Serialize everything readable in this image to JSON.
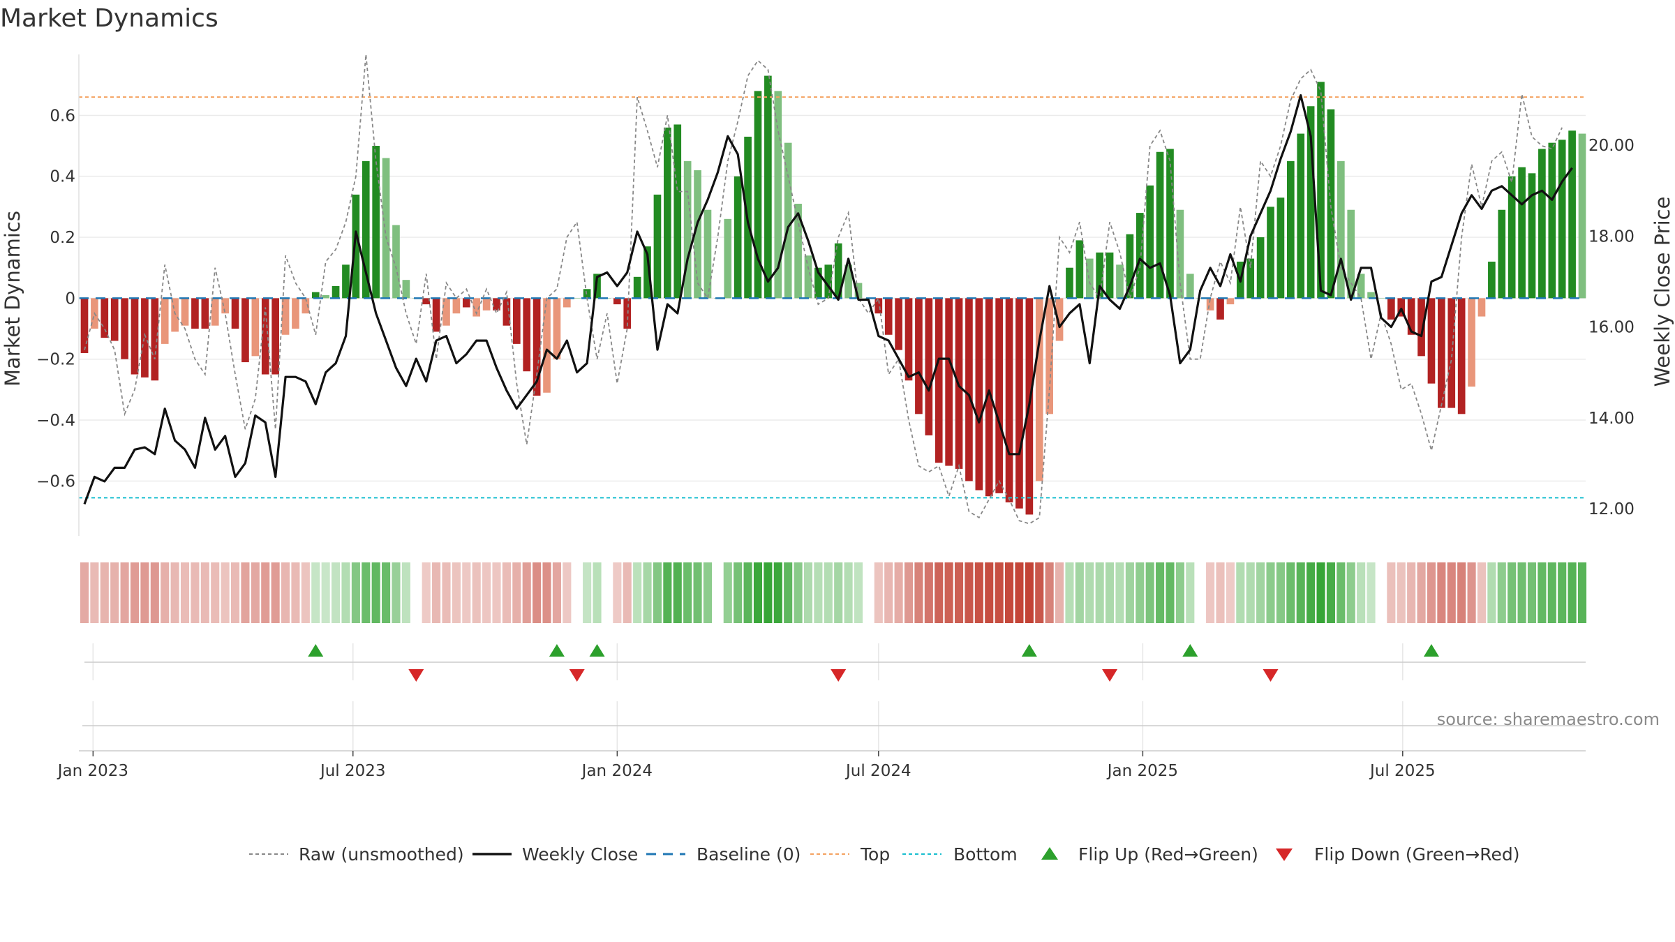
{
  "title": "Market Dynamics",
  "source": "source: sharemaestro.com",
  "colors": {
    "strong_green": "#228b22",
    "light_green": "#7fbf7f",
    "strong_red": "#b22222",
    "light_red": "#e9967a",
    "raw_line": "#888888",
    "close_line": "#111111",
    "baseline": "#1f77b4",
    "top": "#f4a261",
    "bottom": "#17becf",
    "flip_up": "#2ca02c",
    "flip_down": "#d62728"
  },
  "chart_data": {
    "type": "bar",
    "x_type": "weekly dates",
    "x_ticks": [
      "Jan 2023",
      "Jul 2023",
      "Jan 2024",
      "Jul 2024",
      "Jan 2025",
      "Jul 2025"
    ],
    "x_tick_dates": [
      "2023-01-01",
      "2023-07-01",
      "2024-01-01",
      "2024-07-01",
      "2025-01-01",
      "2025-07-01"
    ],
    "start_date": "2022-12-26",
    "ylabel_left": "Market Dynamics",
    "ylabel_right": "Weekly Close Price",
    "ylim_left": [
      -0.78,
      0.8
    ],
    "ylim_right": [
      11.4,
      22.0
    ],
    "y_ticks_left": [
      "0.6",
      "0.4",
      "0.2",
      "0",
      "−0.2",
      "−0.4",
      "−0.6"
    ],
    "y_tick_values_left": [
      0.6,
      0.4,
      0.2,
      0,
      -0.2,
      -0.4,
      -0.6
    ],
    "y_ticks_right": [
      "20.00",
      "18.00",
      "16.00",
      "14.00",
      "12.00"
    ],
    "y_tick_values_right": [
      20,
      18,
      16,
      14,
      12
    ],
    "top_level": 0.66,
    "bottom_level": -0.655,
    "baseline": 0,
    "series": [
      {
        "name": "Market Dynamics",
        "kind": "bars",
        "values": [
          -0.18,
          -0.1,
          -0.13,
          -0.14,
          -0.2,
          -0.25,
          -0.26,
          -0.27,
          -0.15,
          -0.11,
          -0.09,
          -0.1,
          -0.1,
          -0.09,
          -0.05,
          -0.1,
          -0.21,
          -0.19,
          -0.25,
          -0.25,
          -0.12,
          -0.1,
          -0.05,
          0.02,
          0.01,
          0.04,
          0.11,
          0.34,
          0.45,
          0.5,
          0.46,
          0.24,
          0.06,
          0.0,
          -0.02,
          -0.11,
          -0.09,
          -0.05,
          -0.03,
          -0.06,
          -0.04,
          -0.04,
          -0.09,
          -0.15,
          -0.24,
          -0.32,
          -0.31,
          -0.2,
          -0.03,
          0.0,
          0.03,
          0.08,
          0.0,
          -0.02,
          -0.1,
          0.07,
          0.17,
          0.34,
          0.56,
          0.57,
          0.45,
          0.42,
          0.29,
          0.0,
          0.26,
          0.4,
          0.53,
          0.68,
          0.73,
          0.68,
          0.51,
          0.31,
          0.14,
          0.1,
          0.11,
          0.18,
          0.11,
          0.05,
          0.0,
          -0.05,
          -0.12,
          -0.17,
          -0.27,
          -0.38,
          -0.45,
          -0.54,
          -0.55,
          -0.56,
          -0.6,
          -0.63,
          -0.65,
          -0.64,
          -0.67,
          -0.69,
          -0.71,
          -0.6,
          -0.38,
          -0.14,
          0.1,
          0.19,
          0.13,
          0.15,
          0.15,
          0.11,
          0.21,
          0.28,
          0.37,
          0.48,
          0.49,
          0.29,
          0.08,
          0.0,
          -0.04,
          -0.07,
          -0.02,
          0.12,
          0.13,
          0.2,
          0.3,
          0.33,
          0.45,
          0.54,
          0.63,
          0.71,
          0.62,
          0.45,
          0.29,
          0.08,
          0.02,
          0.0,
          -0.07,
          -0.06,
          -0.12,
          -0.19,
          -0.28,
          -0.36,
          -0.36,
          -0.38,
          -0.29,
          -0.06,
          0.12,
          0.29,
          0.4,
          0.43,
          0.41,
          0.49,
          0.51,
          0.52,
          0.55,
          0.54
        ],
        "strength": [
          1,
          0,
          1,
          1,
          1,
          1,
          1,
          1,
          0,
          0,
          0,
          1,
          1,
          0,
          0,
          1,
          1,
          0,
          1,
          1,
          0,
          0,
          0,
          1,
          0,
          1,
          1,
          1,
          1,
          1,
          0,
          0,
          0,
          0,
          1,
          1,
          0,
          0,
          1,
          0,
          0,
          1,
          1,
          1,
          1,
          1,
          0,
          0,
          0,
          0,
          1,
          1,
          0,
          1,
          1,
          1,
          1,
          1,
          1,
          1,
          0,
          0,
          0,
          0,
          0,
          1,
          1,
          1,
          1,
          0,
          0,
          0,
          0,
          1,
          1,
          1,
          0,
          0,
          0,
          1,
          1,
          1,
          1,
          1,
          1,
          1,
          1,
          1,
          1,
          1,
          1,
          1,
          1,
          1,
          1,
          0,
          0,
          0,
          1,
          1,
          0,
          1,
          1,
          0,
          1,
          1,
          1,
          1,
          1,
          0,
          0,
          0,
          0,
          1,
          0,
          1,
          1,
          1,
          1,
          1,
          1,
          1,
          1,
          1,
          1,
          0,
          0,
          0,
          0,
          0,
          1,
          1,
          1,
          1,
          1,
          1,
          1,
          1,
          0,
          0,
          1,
          1,
          1,
          1,
          1,
          1,
          1,
          1,
          1,
          0
        ]
      },
      {
        "name": "Raw (unsmoothed)",
        "kind": "line",
        "values": [
          -0.17,
          -0.05,
          -0.1,
          -0.17,
          -0.38,
          -0.3,
          -0.12,
          -0.2,
          0.11,
          -0.05,
          -0.1,
          -0.2,
          -0.25,
          0.1,
          -0.05,
          -0.25,
          -0.43,
          -0.33,
          -0.03,
          -0.43,
          0.14,
          0.05,
          0.0,
          -0.12,
          0.12,
          0.16,
          0.25,
          0.4,
          0.8,
          0.45,
          0.2,
          0.1,
          -0.05,
          -0.15,
          0.08,
          -0.2,
          0.05,
          0.0,
          0.03,
          -0.05,
          0.03,
          -0.05,
          0.02,
          -0.28,
          -0.48,
          -0.25,
          0.0,
          0.03,
          0.2,
          0.25,
          0.0,
          -0.2,
          -0.05,
          -0.28,
          -0.1,
          0.66,
          0.55,
          0.43,
          0.6,
          0.35,
          0.35,
          0.05,
          0.0,
          0.2,
          0.45,
          0.58,
          0.73,
          0.78,
          0.75,
          0.55,
          0.4,
          0.25,
          0.1,
          -0.02,
          0.0,
          0.2,
          0.28,
          0.0,
          -0.05,
          0.0,
          -0.25,
          -0.2,
          -0.4,
          -0.55,
          -0.57,
          -0.55,
          -0.65,
          -0.55,
          -0.7,
          -0.72,
          -0.66,
          -0.6,
          -0.66,
          -0.73,
          -0.74,
          -0.72,
          -0.3,
          0.2,
          0.15,
          0.25,
          0.05,
          0.0,
          0.25,
          0.15,
          0.0,
          0.1,
          0.5,
          0.55,
          0.45,
          0.05,
          -0.2,
          -0.2,
          0.0,
          0.12,
          0.05,
          0.3,
          0.1,
          0.45,
          0.4,
          0.5,
          0.65,
          0.72,
          0.75,
          0.68,
          0.3,
          0.1,
          0.05,
          0.0,
          -0.2,
          -0.05,
          -0.15,
          -0.3,
          -0.28,
          -0.38,
          -0.5,
          -0.35,
          -0.2,
          0.2,
          0.44,
          0.3,
          0.45,
          0.48,
          0.38,
          0.67,
          0.53,
          0.5,
          0.49,
          0.56
        ]
      },
      {
        "name": "Weekly Close",
        "kind": "line",
        "axis": "right",
        "values": [
          12.1,
          12.7,
          12.6,
          12.9,
          12.9,
          13.3,
          13.35,
          13.2,
          14.2,
          13.5,
          13.3,
          12.9,
          14.0,
          13.3,
          13.6,
          12.7,
          13.0,
          14.05,
          13.9,
          12.7,
          14.9,
          14.9,
          14.8,
          14.3,
          15.0,
          15.2,
          15.8,
          18.1,
          17.2,
          16.3,
          15.7,
          15.1,
          14.7,
          15.3,
          14.8,
          15.7,
          15.8,
          15.2,
          15.4,
          15.7,
          15.7,
          15.1,
          14.6,
          14.2,
          14.5,
          14.8,
          15.5,
          15.3,
          15.7,
          15.0,
          15.2,
          17.1,
          17.2,
          16.9,
          17.2,
          18.1,
          17.6,
          15.5,
          16.5,
          16.3,
          17.5,
          18.3,
          18.8,
          19.4,
          20.2,
          19.8,
          18.3,
          17.5,
          17.0,
          17.3,
          18.2,
          18.5,
          17.9,
          17.2,
          16.9,
          16.6,
          17.5,
          16.6,
          16.6,
          15.8,
          15.7,
          15.3,
          14.9,
          15.0,
          14.6,
          15.3,
          15.3,
          14.7,
          14.5,
          13.9,
          14.6,
          13.9,
          13.2,
          13.2,
          14.3,
          15.7,
          16.9,
          16.0,
          16.3,
          16.5,
          15.2,
          16.9,
          16.6,
          16.4,
          16.9,
          17.5,
          17.3,
          17.4,
          16.7,
          15.2,
          15.5,
          16.8,
          17.3,
          16.9,
          17.6,
          17.0,
          18.0,
          18.5,
          19.0,
          19.7,
          20.3,
          21.1,
          20.2,
          16.8,
          16.7,
          17.5,
          16.6,
          17.3,
          17.3,
          16.2,
          16.0,
          16.4,
          15.9,
          15.8,
          17.0,
          17.1,
          17.8,
          18.5,
          18.9,
          18.6,
          19.0,
          19.1,
          18.9,
          18.7,
          18.9,
          19.0,
          18.8,
          19.2,
          19.5
        ]
      }
    ],
    "flip_up_weeks": [
      23,
      47,
      51,
      94,
      110,
      134
    ],
    "flip_down_weeks": [
      33,
      49,
      75,
      102,
      118
    ],
    "legend": [
      "Raw (unsmoothed)",
      "Weekly Close",
      "Baseline (0)",
      "Top",
      "Bottom",
      "Flip Up (Red→Green)",
      "Flip Down (Green→Red)"
    ],
    "legend_position": "bottom",
    "grid": true
  }
}
